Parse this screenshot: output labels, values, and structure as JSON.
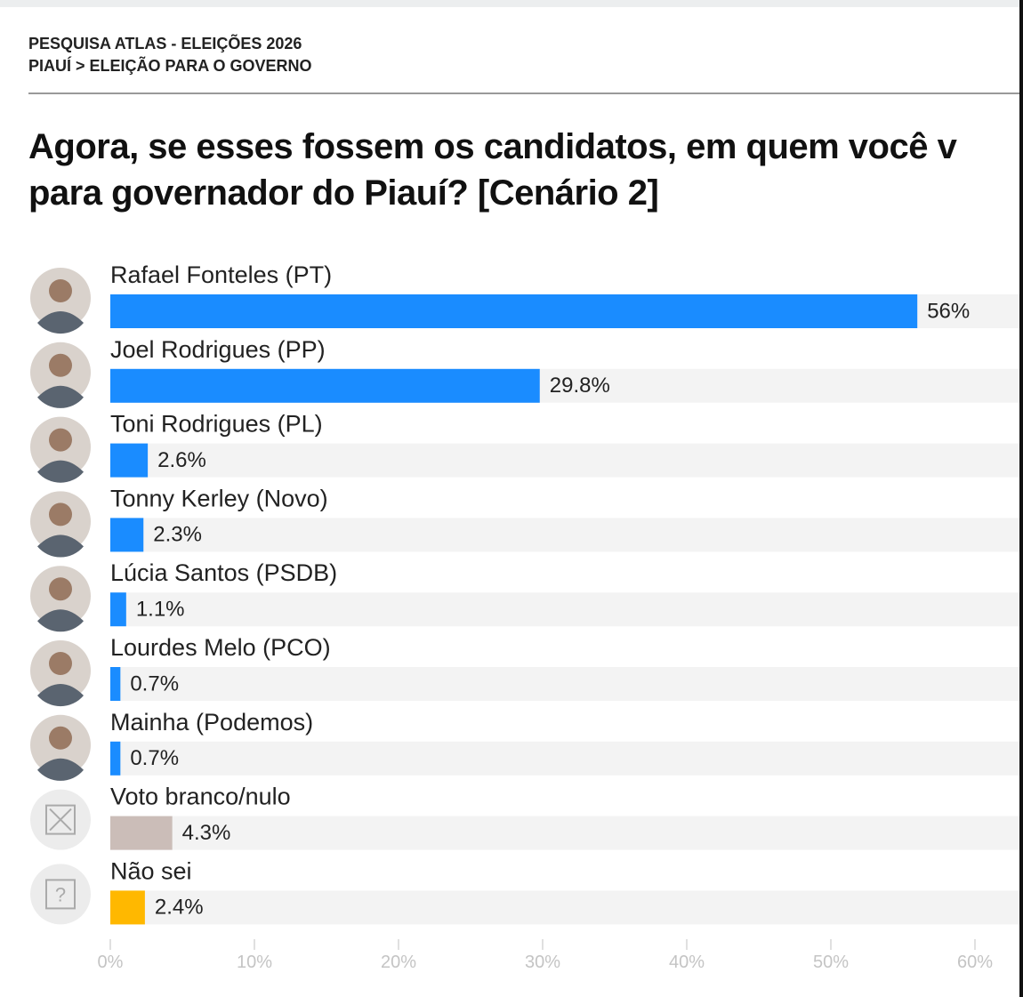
{
  "chart_data": {
    "type": "bar",
    "orientation": "horizontal",
    "header": [
      "PESQUISA ATLAS - ELEIÇÕES 2026",
      "PIAUÍ > ELEIÇÃO PARA O GOVERNO"
    ],
    "title": [
      "Agora, se esses fossem os candidatos, em quem você v",
      "para governador do Piauí? [Cenário 2]"
    ],
    "categories": [
      "Rafael Fonteles (PT)",
      "Joel Rodrigues (PP)",
      "Toni Rodrigues (PL)",
      "Tonny Kerley (Novo)",
      "Lúcia Santos (PSDB)",
      "Lourdes Melo (PCO)",
      "Mainha (Podemos)",
      "Voto branco/nulo",
      "Não sei"
    ],
    "values": [
      56,
      29.8,
      2.6,
      2.3,
      1.1,
      0.7,
      0.7,
      4.3,
      2.4
    ],
    "value_labels": [
      "56%",
      "29.8%",
      "2.6%",
      "2.3%",
      "1.1%",
      "0.7%",
      "0.7%",
      "4.3%",
      "2.4%"
    ],
    "colors": [
      "#1a8cff",
      "#1a8cff",
      "#1a8cff",
      "#1a8cff",
      "#1a8cff",
      "#1a8cff",
      "#1a8cff",
      "#cbbdb8",
      "#ffb800"
    ],
    "xlim": [
      0,
      60
    ],
    "xticks": [
      {
        "value": 0,
        "label": "0%"
      },
      {
        "value": 10,
        "label": "10%"
      },
      {
        "value": 20,
        "label": "20%"
      },
      {
        "value": 30,
        "label": "30%"
      },
      {
        "value": 40,
        "label": "40%"
      },
      {
        "value": 50,
        "label": "50%"
      },
      {
        "value": 60,
        "label": "60%"
      }
    ]
  }
}
